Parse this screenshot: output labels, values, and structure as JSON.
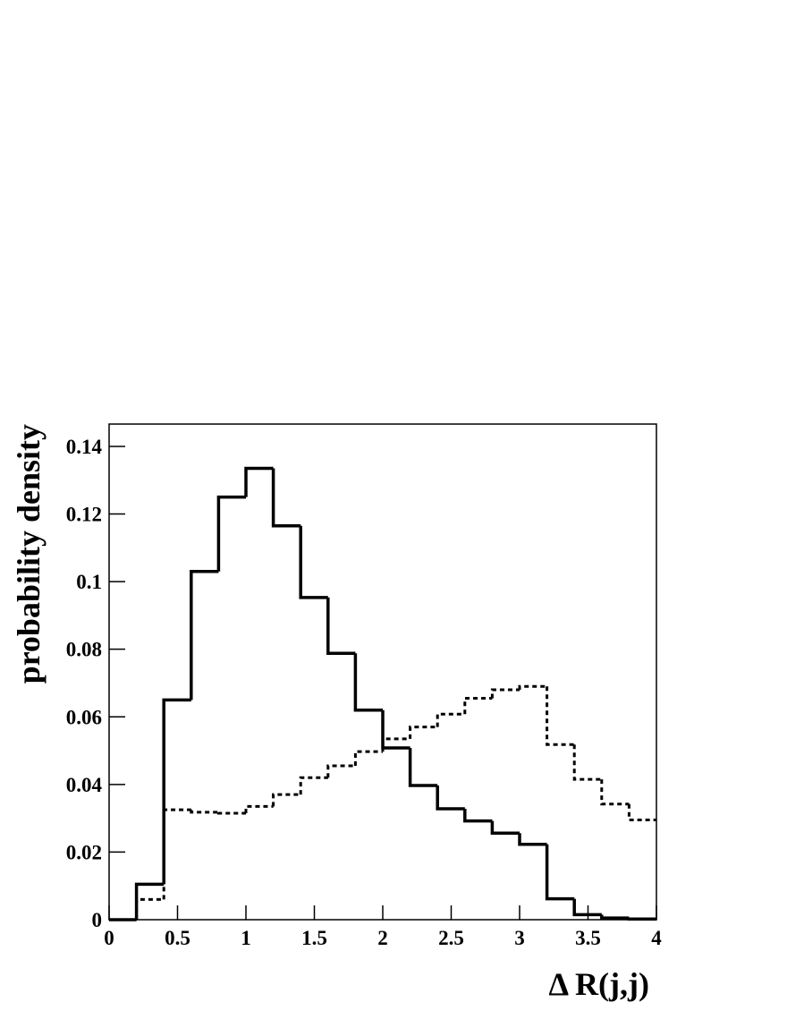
{
  "chart_data": {
    "type": "histogram",
    "xlabel": "Δ R(j,j)",
    "ylabel": "probability density",
    "bins": [
      0,
      0.2,
      0.4,
      0.6,
      0.8,
      1.0,
      1.2,
      1.4,
      1.6,
      1.8,
      2.0,
      2.2,
      2.4,
      2.6,
      2.8,
      3.0,
      3.2,
      3.4,
      3.6,
      3.8,
      4.0
    ],
    "series": [
      {
        "color": "#000000",
        "linestyle": "solid",
        "values": [
          0,
          0.0105,
          0.065,
          0.103,
          0.125,
          0.1335,
          0.1165,
          0.0953,
          0.0788,
          0.062,
          0.0508,
          0.0397,
          0.0328,
          0.0292,
          0.0256,
          0.0223,
          0.0062,
          0.0015,
          0.0005,
          0.0002
        ]
      },
      {
        "color": "#000000",
        "linestyle": "dotted",
        "values": [
          0,
          0.006,
          0.0325,
          0.0318,
          0.0315,
          0.0335,
          0.037,
          0.042,
          0.0455,
          0.0497,
          0.0535,
          0.057,
          0.0608,
          0.0655,
          0.068,
          0.069,
          0.0518,
          0.0415,
          0.0342,
          0.0295
        ]
      }
    ],
    "xlim": [
      0,
      4
    ],
    "xticks": [
      0,
      0.5,
      1,
      1.5,
      2,
      2.5,
      3,
      3.5,
      4
    ],
    "ylim": [
      0,
      0.1466
    ],
    "yticks": [
      0,
      0.02,
      0.04,
      0.06,
      0.08,
      0.1,
      0.12,
      0.14
    ]
  }
}
